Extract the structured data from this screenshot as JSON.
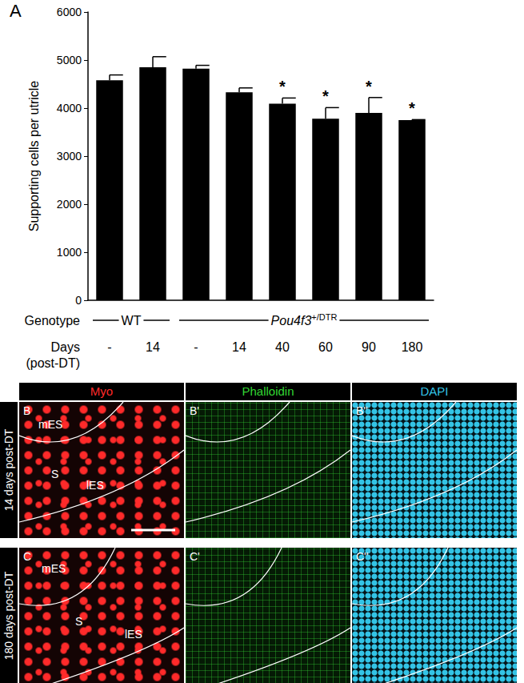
{
  "chart_data": {
    "type": "bar",
    "panel_label": "A",
    "y_label": "Supporting cells per utricle",
    "categories": [
      "-",
      "14",
      "-",
      "14",
      "40",
      "60",
      "90",
      "180"
    ],
    "values": [
      4580,
      4850,
      4820,
      4330,
      4090,
      3780,
      3900,
      3750
    ],
    "errors": [
      110,
      220,
      70,
      90,
      120,
      230,
      320,
      10
    ],
    "significance": [
      null,
      null,
      null,
      null,
      "*",
      "*",
      "*",
      "*"
    ],
    "color": "#000000",
    "ylim": [
      0,
      6000
    ],
    "yticks": [
      0,
      1000,
      2000,
      3000,
      4000,
      5000,
      6000
    ],
    "grid": false,
    "row_labels": {
      "genotype": "Genotype",
      "days": [
        "Days",
        "(post-DT)"
      ]
    },
    "genotype_groups": [
      {
        "label": "WT",
        "first": 0,
        "last": 1
      },
      {
        "label": "Pou4f3",
        "superscript": "+/DTR",
        "first": 2,
        "last": 7
      }
    ]
  },
  "image_panels": {
    "columns": [
      {
        "label": "Myo",
        "color": "#ff2a2a"
      },
      {
        "label": "Phalloidin",
        "color": "#33d633"
      },
      {
        "label": "DAPI",
        "color": "#33c4e6"
      }
    ],
    "rows": [
      {
        "label": "14 days post-DT",
        "panels": [
          "B",
          "B'",
          "B''"
        ],
        "regions": [
          "mES",
          "S",
          "lES"
        ]
      },
      {
        "label": "180 days post-DT",
        "panels": [
          "C",
          "C'",
          "C''"
        ],
        "regions": [
          "mES",
          "S",
          "lES"
        ]
      }
    ]
  }
}
